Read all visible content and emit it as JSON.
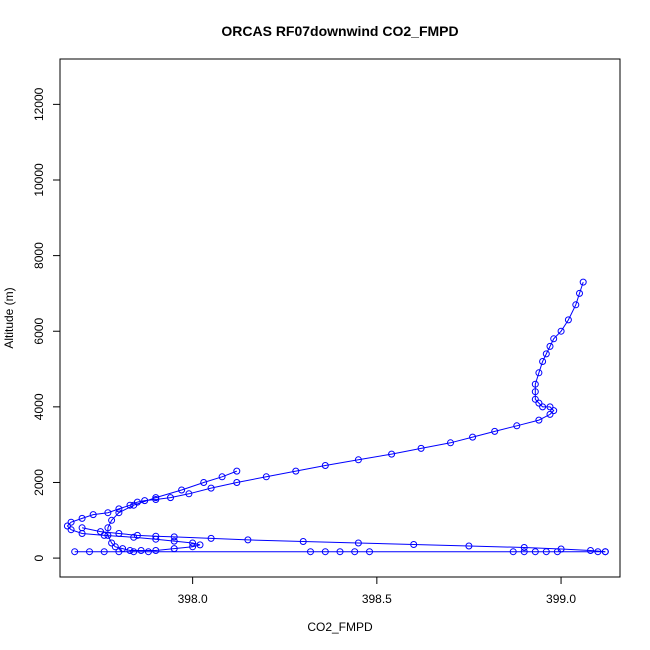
{
  "chart_data": {
    "type": "line",
    "title": "ORCAS RF07downwind CO2_FMPD",
    "xlabel": "CO2_FMPD",
    "ylabel": "Altitude (m)",
    "xlim": [
      397.64,
      399.16
    ],
    "ylim": [
      -500,
      13200
    ],
    "xticks": [
      "398.0",
      "398.5",
      "399.0"
    ],
    "xtick_values": [
      398.0,
      398.5,
      399.0
    ],
    "yticks": [
      "0",
      "2000",
      "4000",
      "6000",
      "8000",
      "10000",
      "12000"
    ],
    "ytick_values": [
      0,
      2000,
      4000,
      6000,
      8000,
      10000,
      12000
    ],
    "grid": false,
    "legend": "none",
    "color": "#0000ff",
    "series": [
      {
        "x": [
          399.06,
          399.05,
          399.04,
          399.02,
          399.0,
          398.98,
          398.97,
          398.96,
          398.95,
          398.94,
          398.93,
          398.93,
          398.93,
          398.94,
          398.95,
          398.97,
          398.98,
          398.97,
          398.94,
          398.88,
          398.82,
          398.76,
          398.7,
          398.62,
          398.54,
          398.45,
          398.36,
          398.28,
          398.2,
          398.12,
          398.05,
          397.99,
          397.94,
          397.9,
          397.87,
          397.85,
          397.83,
          397.8,
          397.77,
          397.73,
          397.7,
          397.67,
          397.66,
          397.67,
          397.7,
          397.76,
          397.84,
          397.9,
          397.95,
          398.0,
          398.02,
          398.0,
          397.95,
          397.9,
          397.86,
          397.83,
          397.81,
          397.79,
          397.78,
          397.77,
          397.77,
          397.78,
          397.8,
          397.84,
          397.9,
          397.97,
          398.03,
          398.08,
          398.12
        ],
        "y": [
          7300,
          7000,
          6700,
          6300,
          6000,
          5800,
          5600,
          5400,
          5200,
          4900,
          4600,
          4400,
          4200,
          4100,
          4000,
          4000,
          3900,
          3800,
          3650,
          3500,
          3350,
          3200,
          3050,
          2900,
          2750,
          2600,
          2450,
          2300,
          2150,
          2000,
          1850,
          1700,
          1600,
          1550,
          1520,
          1480,
          1400,
          1300,
          1200,
          1150,
          1050,
          950,
          850,
          750,
          650,
          600,
          550,
          500,
          450,
          400,
          350,
          300,
          250,
          200,
          200,
          200,
          250,
          300,
          400,
          600,
          800,
          1000,
          1200,
          1400,
          1600,
          1800,
          2000,
          2150,
          2300
        ]
      },
      {
        "x": [
          397.7,
          397.75,
          397.8,
          397.85,
          397.9,
          397.95,
          398.05,
          398.15,
          398.3,
          398.45,
          398.6,
          398.75,
          398.9,
          399.0,
          399.08,
          399.12
        ],
        "y": [
          800,
          700,
          650,
          600,
          580,
          560,
          520,
          480,
          440,
          400,
          360,
          320,
          280,
          240,
          200,
          170
        ]
      },
      {
        "x": [
          397.68,
          397.72,
          397.76,
          397.8,
          397.84,
          397.88,
          398.32,
          398.36,
          398.4,
          398.44,
          398.48,
          398.87,
          398.9,
          398.93,
          398.96,
          398.99,
          399.1,
          399.12
        ],
        "y": [
          170,
          170,
          170,
          170,
          170,
          170,
          170,
          170,
          170,
          170,
          170,
          170,
          170,
          170,
          170,
          170,
          170,
          170
        ]
      }
    ]
  }
}
